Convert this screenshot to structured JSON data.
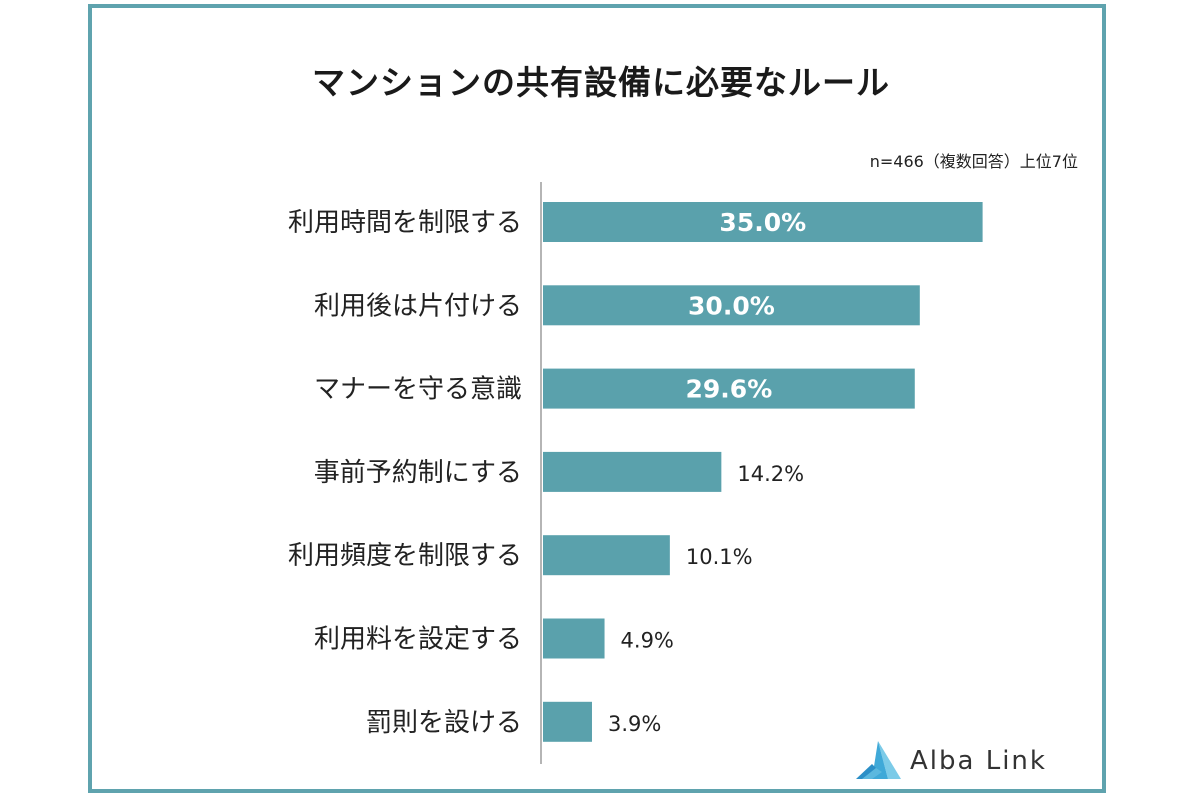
{
  "chart_data": {
    "type": "bar",
    "orientation": "horizontal",
    "title": "マンションの共有設備に必要なルール",
    "note": "n=466（複数回答）上位7位",
    "categories": [
      "利用時間を制限する",
      "利用後は片付ける",
      "マナーを守る意識",
      "事前予約制にする",
      "利用頻度を制限する",
      "利用料を設定する",
      "罰則を設ける"
    ],
    "values": [
      35.0,
      30.0,
      29.6,
      14.2,
      10.1,
      4.9,
      3.9
    ],
    "value_labels": [
      "35.0%",
      "30.0%",
      "29.6%",
      "14.2%",
      "10.1%",
      "4.9%",
      "3.9%"
    ],
    "xlim": [
      0,
      40
    ],
    "grid": false,
    "bar_color": "#5aa1ac"
  },
  "brand": {
    "name": "Alba Link",
    "logo_icon": "alba-link-logo-icon",
    "logo_color": "#3fa9d8"
  }
}
